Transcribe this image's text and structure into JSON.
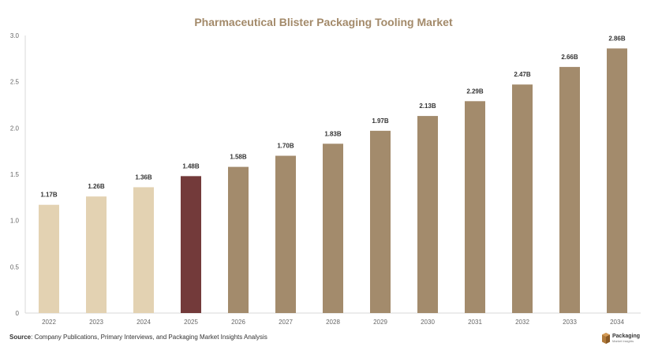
{
  "chart_data": {
    "type": "bar",
    "title": "Pharmaceutical Blister Packaging Tooling Market",
    "xlabel": "",
    "ylabel": "",
    "ylim": [
      0,
      3.0
    ],
    "yticks": [
      "0",
      "0.5",
      "1.0",
      "1.5",
      "2.0",
      "2.5",
      "3.0"
    ],
    "grid": false,
    "categories": [
      "2022",
      "2023",
      "2024",
      "2025",
      "2026",
      "2027",
      "2028",
      "2029",
      "2030",
      "2031",
      "2032",
      "2033",
      "2034"
    ],
    "values": [
      1.17,
      1.26,
      1.36,
      1.48,
      1.58,
      1.7,
      1.83,
      1.97,
      2.13,
      2.29,
      2.47,
      2.66,
      2.86
    ],
    "data_labels": [
      "1.17B",
      "1.26B",
      "1.36B",
      "1.48B",
      "1.58B",
      "1.70B",
      "1.83B",
      "1.97B",
      "2.13B",
      "2.29B",
      "2.47B",
      "2.66B",
      "2.86B"
    ],
    "bar_colors": [
      "#e3d2b2",
      "#e3d2b2",
      "#e3d2b2",
      "#733a3a",
      "#a38b6c",
      "#a38b6c",
      "#a38b6c",
      "#a38b6c",
      "#a38b6c",
      "#a38b6c",
      "#a38b6c",
      "#a38b6c",
      "#a38b6c"
    ]
  },
  "source": {
    "label": "Source",
    "text": ": Company Publications, Primary Interviews, and Packaging Market Insights Analysis"
  },
  "logo": {
    "name": "Packaging",
    "sub": "Market Insights",
    "icon": "box-icon",
    "color": "#b07a3a"
  }
}
